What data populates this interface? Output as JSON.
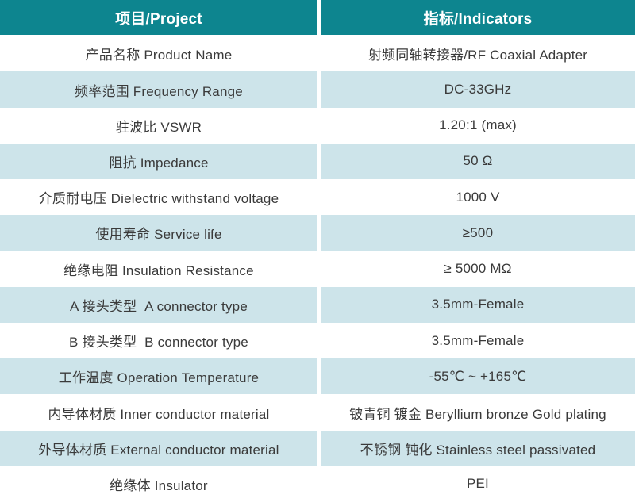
{
  "table": {
    "header": {
      "project": "项目/Project",
      "indicators": "指标/Indicators"
    },
    "rows": [
      {
        "project": "产品名称 Product Name",
        "indicator": "射频同轴转接器/RF Coaxial Adapter"
      },
      {
        "project": "频率范围 Frequency Range",
        "indicator": "DC-33GHz"
      },
      {
        "project": "驻波比 VSWR",
        "indicator": "1.20:1 (max)"
      },
      {
        "project": "阻抗 Impedance",
        "indicator": "50 Ω"
      },
      {
        "project": "介质耐电压 Dielectric withstand voltage",
        "indicator": "1000 V"
      },
      {
        "project": "使用寿命 Service life",
        "indicator": "≥500"
      },
      {
        "project": "绝缘电阻 Insulation Resistance",
        "indicator": "≥ 5000 MΩ"
      },
      {
        "project": "A 接头类型  A connector type",
        "indicator": "3.5mm-Female"
      },
      {
        "project": "B 接头类型  B connector type",
        "indicator": "3.5mm-Female"
      },
      {
        "project": "工作温度 Operation Temperature",
        "indicator": "-55℃ ~ +165℃"
      },
      {
        "project": "内导体材质 Inner conductor material",
        "indicator": "铍青铜 镀金 Beryllium bronze Gold plating"
      },
      {
        "project": "外导体材质 External conductor material",
        "indicator": "不锈钢 钝化 Stainless steel passivated"
      },
      {
        "project": "绝缘体 Insulator",
        "indicator": "PEI"
      }
    ],
    "colors": {
      "header_bg": "#0d858f",
      "header_text": "#ffffff",
      "row_alt_bg": "#cde4ea",
      "row_bg": "#ffffff",
      "text": "#3a3a3a"
    }
  }
}
